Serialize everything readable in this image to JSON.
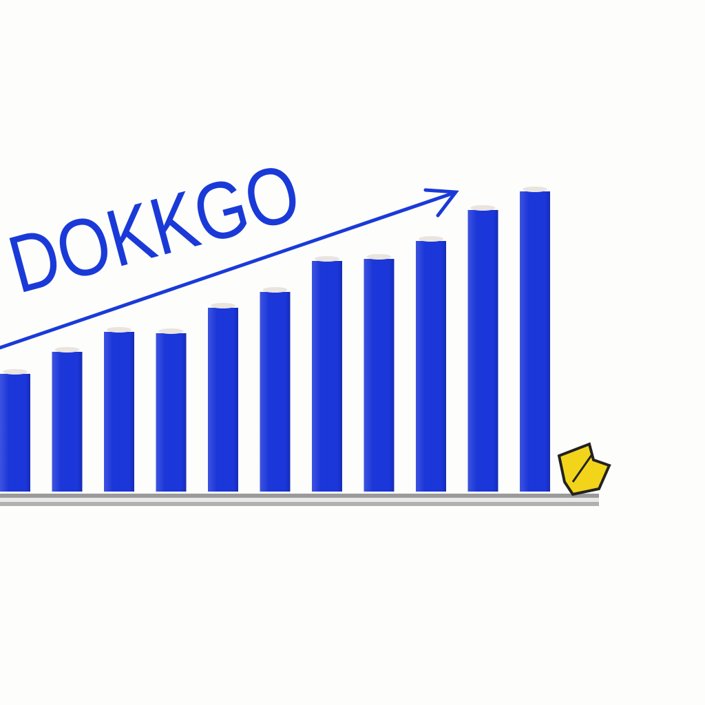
{
  "chart_data": {
    "type": "bar",
    "title": "DOKKGO",
    "categories": [
      null,
      null,
      null,
      null,
      null,
      null,
      null,
      null,
      null,
      null,
      null
    ],
    "values": [
      171,
      203,
      232,
      230,
      267,
      290,
      335,
      338,
      364,
      409,
      436
    ],
    "color": "#1b36d9",
    "ylim": [
      0,
      500
    ]
  }
}
